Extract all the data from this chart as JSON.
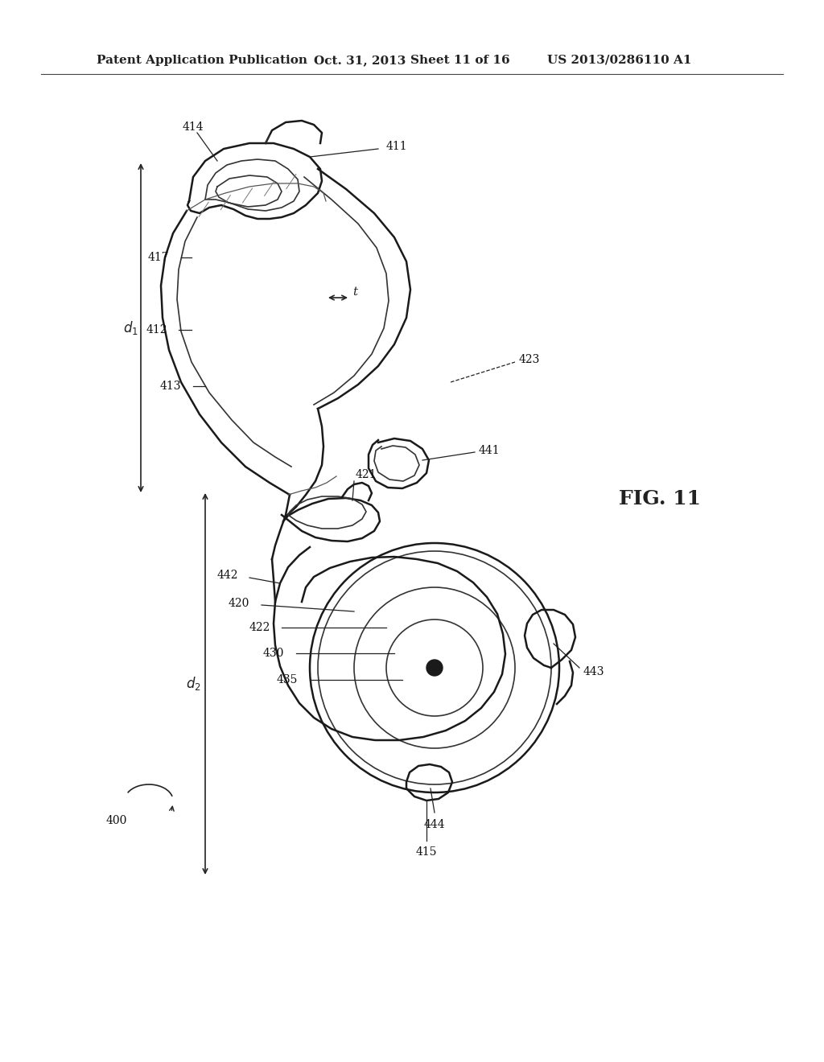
{
  "bg_color": "#ffffff",
  "header_line1": "Patent Application Publication",
  "header_date": "Oct. 31, 2013",
  "header_sheet": "Sheet 11 of 16",
  "header_patent": "US 2013/0286110 A1",
  "fig_label": "FIG. 11",
  "ref_numbers": [
    "400",
    "411",
    "412",
    "413",
    "414",
    "415",
    "417",
    "420",
    "421",
    "422",
    "423",
    "430",
    "435",
    "441",
    "442",
    "443",
    "444"
  ],
  "dim_labels": [
    "d₁",
    "d₂",
    "t"
  ]
}
